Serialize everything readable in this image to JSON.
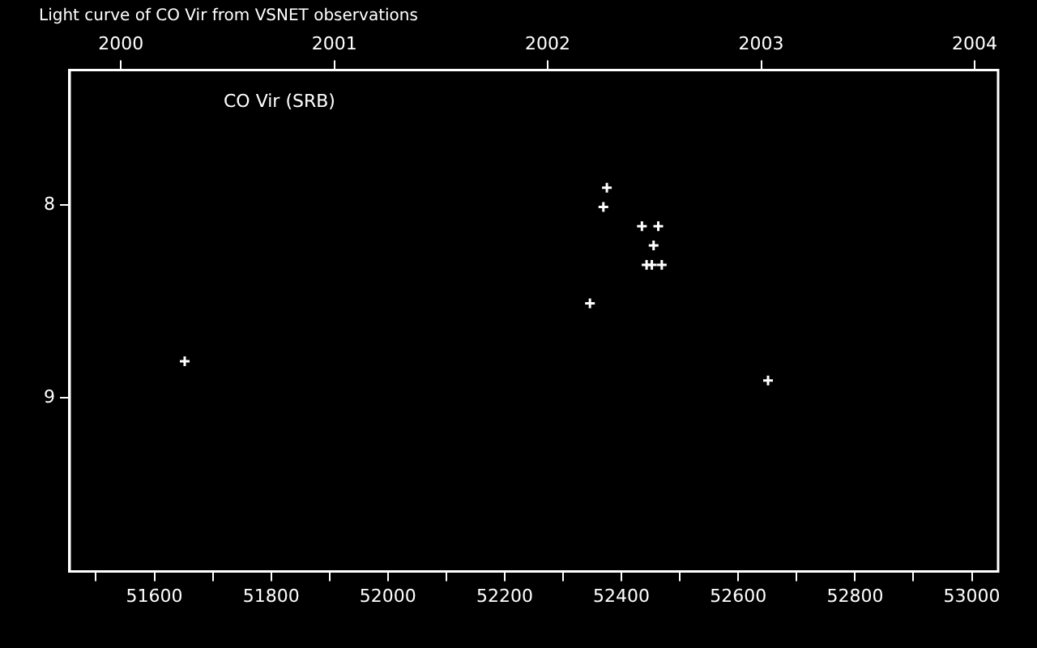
{
  "chart_data": {
    "type": "scatter",
    "title": "Light curve of CO Vir from VSNET observations",
    "annotations": [
      "CO Vir (SRB)"
    ],
    "x": [
      51652,
      52346,
      52369,
      52375,
      52435,
      52463,
      52455,
      52443,
      52452,
      52469,
      52651
    ],
    "values": [
      8.81,
      8.51,
      8.01,
      7.91,
      8.11,
      8.11,
      8.21,
      8.31,
      8.31,
      8.31,
      8.91
    ],
    "color": "#ffffff",
    "marker": "cross",
    "xlim": [
      51455,
      53045
    ],
    "xticks": [
      {
        "value": 51500,
        "label": null
      },
      51600,
      {
        "value": 51700,
        "label": null
      },
      51800,
      {
        "value": 51900,
        "label": null
      },
      52000,
      {
        "value": 52100,
        "label": null
      },
      52200,
      {
        "value": 52300,
        "label": null
      },
      52400,
      {
        "value": 52500,
        "label": null
      },
      52600,
      {
        "value": 52700,
        "label": null
      },
      52800,
      {
        "value": 52900,
        "label": null
      },
      53000
    ],
    "x2lim": [
      1999.76,
      2004.11
    ],
    "x2ticks": [
      2000,
      2001,
      2002,
      2003,
      2004
    ],
    "ylim": [
      9.9,
      7.3
    ],
    "yticks": [
      8,
      9
    ],
    "grid": false
  }
}
